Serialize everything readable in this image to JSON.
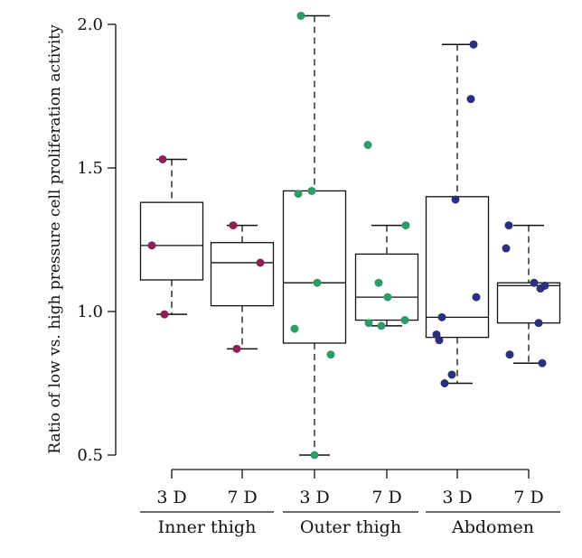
{
  "chart_data": {
    "type": "box",
    "title": "",
    "ylabel": "Ratio of low vs. high pressure cell proliferation activity",
    "xlabel": "",
    "ylim": [
      0.45,
      2.08
    ],
    "yticks": [
      0.5,
      1.0,
      1.5,
      2.0
    ],
    "ytick_labels": [
      "0.5",
      "1.0",
      "1.5",
      "2.0"
    ],
    "grid": false,
    "legend": "none",
    "groups": [
      {
        "label": "Inner thigh",
        "color": "#8B2252",
        "boxes": [
          {
            "label": "3 D",
            "whisker_low": 0.99,
            "q1": 1.11,
            "median": 1.23,
            "q3": 1.38,
            "whisker_high": 1.53,
            "points": [
              1.53,
              1.23,
              0.99
            ]
          },
          {
            "label": "7 D",
            "whisker_low": 0.87,
            "q1": 1.02,
            "median": 1.17,
            "q3": 1.24,
            "whisker_high": 1.3,
            "points": [
              1.3,
              1.17,
              0.87
            ]
          }
        ]
      },
      {
        "label": "Outer thigh",
        "color": "#2E9B6A",
        "boxes": [
          {
            "label": "3 D",
            "whisker_low": 0.5,
            "q1": 0.89,
            "median": 1.1,
            "q3": 1.42,
            "whisker_high": 2.03,
            "points": [
              2.03,
              1.42,
              1.41,
              1.1,
              0.94,
              0.85,
              0.5
            ]
          },
          {
            "label": "7 D",
            "whisker_low": 0.95,
            "q1": 0.97,
            "median": 1.05,
            "q3": 1.2,
            "whisker_high": 1.3,
            "points": [
              1.58,
              1.3,
              1.1,
              1.05,
              0.97,
              0.96,
              0.95
            ]
          }
        ]
      },
      {
        "label": "Abdomen",
        "color": "#2B2F7C",
        "boxes": [
          {
            "label": "3 D",
            "whisker_low": 0.75,
            "q1": 0.91,
            "median": 0.98,
            "q3": 1.4,
            "whisker_high": 1.93,
            "points": [
              1.93,
              1.74,
              1.39,
              1.05,
              0.98,
              0.92,
              0.9,
              0.78,
              0.75
            ]
          },
          {
            "label": "7 D",
            "whisker_low": 0.82,
            "q1": 0.96,
            "median": 1.09,
            "q3": 1.1,
            "whisker_high": 1.3,
            "points": [
              1.3,
              1.22,
              1.1,
              1.09,
              1.08,
              0.96,
              0.85,
              0.82
            ]
          }
        ]
      }
    ]
  }
}
